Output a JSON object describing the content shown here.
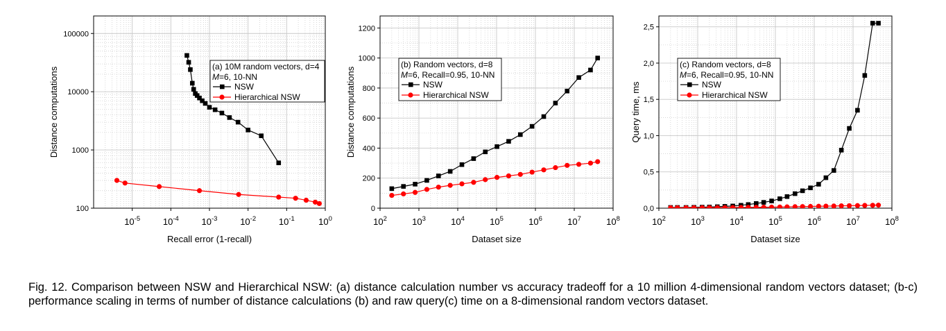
{
  "caption": "Fig. 12. Comparison between NSW and Hierarchical NSW: (a) distance calculation number vs accuracy tradeoff for a 10 million 4-dimensional random vectors dataset; (b-c) performance scaling in terms of number of distance calculations (b) and raw query(c) time on a 8-dimensional random vectors dataset.",
  "colors": {
    "nsw": "#000000",
    "hnsw": "#ff0000",
    "grid": "#c8c8c8"
  },
  "chart_data": [
    {
      "type": "line",
      "panel": "a",
      "xlabel": "Recall error (1-recall)",
      "ylabel": "Distance computations",
      "xscale": "log",
      "yscale": "log",
      "xlim": [
        1e-06,
        1
      ],
      "ylim": [
        100,
        200000
      ],
      "xtick_exponents": [
        -5,
        -4,
        -3,
        -2,
        -1,
        0
      ],
      "ytick_labels": [
        "100",
        "1000",
        "10000",
        "100000"
      ],
      "ytick_values": [
        100,
        1000,
        10000,
        100000
      ],
      "legend_title": "(a) 10M random vectors, d=4",
      "legend_subtitle_var": "M",
      "legend_subtitle": "=6, 10-NN",
      "legend_placement": "top-right",
      "grid": true,
      "series": [
        {
          "name": "NSW",
          "marker": "square",
          "x": [
            0.00026,
            0.00029,
            0.00032,
            0.00036,
            0.00039,
            0.00043,
            0.00048,
            0.00055,
            0.00065,
            0.00078,
            0.001,
            0.0014,
            0.0021,
            0.0033,
            0.0055,
            0.01,
            0.022,
            0.062
          ],
          "y": [
            42000,
            32000,
            24000,
            14000,
            11000,
            9300,
            8600,
            7800,
            7000,
            6300,
            5400,
            4900,
            4300,
            3600,
            3000,
            2200,
            1750,
            600
          ]
        },
        {
          "name": "Hierarchical NSW",
          "marker": "circle",
          "x": [
            4e-06,
            6.5e-06,
            5e-05,
            0.00055,
            0.0057,
            0.062,
            0.17,
            0.32,
            0.55,
            0.7
          ],
          "y": [
            300,
            270,
            235,
            200,
            172,
            155,
            148,
            137,
            127,
            120
          ]
        }
      ]
    },
    {
      "type": "line",
      "panel": "b",
      "xlabel": "Dataset size",
      "ylabel": "Distance computations",
      "xscale": "log",
      "yscale": "linear",
      "xlim": [
        100,
        100000000
      ],
      "ylim": [
        0,
        1280
      ],
      "xtick_exponents": [
        2,
        3,
        4,
        5,
        6,
        7,
        8
      ],
      "ytick_labels": [
        "0",
        "200",
        "400",
        "600",
        "800",
        "1000",
        "1200"
      ],
      "ytick_values": [
        0,
        200,
        400,
        600,
        800,
        1000,
        1200
      ],
      "legend_title": "(b) Random vectors, d=8",
      "legend_subtitle_var": "M",
      "legend_subtitle": "=6, Recall=0.95, 10-NN",
      "legend_placement": "top-left",
      "grid": true,
      "series": [
        {
          "name": "NSW",
          "marker": "square",
          "x": [
            200,
            400,
            800,
            1600,
            3200,
            6400,
            12800,
            25600,
            51200,
            102400,
            204800,
            409600,
            819200,
            1638400,
            3276800,
            6553600,
            13107200,
            26214400,
            40000000
          ],
          "y": [
            130,
            145,
            160,
            185,
            215,
            245,
            290,
            330,
            375,
            410,
            445,
            490,
            545,
            610,
            700,
            780,
            870,
            920,
            1000
          ]
        },
        {
          "name": "Hierarchical NSW",
          "marker": "circle",
          "x": [
            200,
            400,
            800,
            1600,
            3200,
            6400,
            12800,
            25600,
            51200,
            102400,
            204800,
            409600,
            819200,
            1638400,
            3276800,
            6553600,
            13107200,
            26214400,
            40000000
          ],
          "y": [
            85,
            95,
            105,
            125,
            140,
            152,
            162,
            172,
            190,
            205,
            215,
            225,
            240,
            255,
            270,
            285,
            292,
            300,
            310
          ]
        }
      ]
    },
    {
      "type": "line",
      "panel": "c",
      "xlabel": "Dataset size",
      "ylabel": "Query time, ms",
      "xscale": "log",
      "yscale": "linear",
      "xlim": [
        100,
        100000000
      ],
      "ylim": [
        0,
        2.65
      ],
      "xtick_exponents": [
        2,
        3,
        4,
        5,
        6,
        7,
        8
      ],
      "ytick_labels": [
        "0,0",
        "0,5",
        "1,0",
        "1,5",
        "2,0",
        "2,5"
      ],
      "ytick_values": [
        0,
        0.5,
        1.0,
        1.5,
        2.0,
        2.5
      ],
      "legend_title": "(c) Random vectors, d=8",
      "legend_subtitle_var": "M",
      "legend_subtitle": "=6, Recall=0.95, 10-NN",
      "legend_placement": "top-left",
      "grid": true,
      "series": [
        {
          "name": "NSW",
          "marker": "square",
          "x": [
            200,
            300,
            500,
            800,
            1300,
            2000,
            3200,
            5000,
            8000,
            13000,
            20000,
            32000,
            50000,
            80000,
            130000,
            200000,
            320000,
            500000,
            800000,
            1300000,
            2000000,
            3200000,
            5000000,
            8000000,
            13000000,
            20000000,
            32000000,
            45000000
          ],
          "y": [
            0.01,
            0.01,
            0.01,
            0.012,
            0.014,
            0.016,
            0.02,
            0.025,
            0.03,
            0.04,
            0.05,
            0.065,
            0.08,
            0.1,
            0.13,
            0.16,
            0.2,
            0.24,
            0.28,
            0.33,
            0.42,
            0.52,
            0.8,
            1.1,
            1.35,
            1.83,
            2.55,
            2.55
          ]
        },
        {
          "name": "Hierarchical NSW",
          "marker": "circle",
          "x": [
            200,
            300,
            500,
            800,
            1300,
            2000,
            3200,
            5000,
            8000,
            13000,
            20000,
            32000,
            50000,
            80000,
            130000,
            200000,
            320000,
            500000,
            800000,
            1300000,
            2000000,
            3200000,
            5000000,
            8000000,
            13000000,
            20000000,
            32000000,
            45000000
          ],
          "y": [
            0.005,
            0.005,
            0.005,
            0.006,
            0.006,
            0.007,
            0.007,
            0.008,
            0.009,
            0.01,
            0.011,
            0.012,
            0.013,
            0.014,
            0.016,
            0.018,
            0.02,
            0.022,
            0.024,
            0.026,
            0.028,
            0.03,
            0.032,
            0.034,
            0.036,
            0.038,
            0.04,
            0.042
          ]
        }
      ]
    }
  ]
}
